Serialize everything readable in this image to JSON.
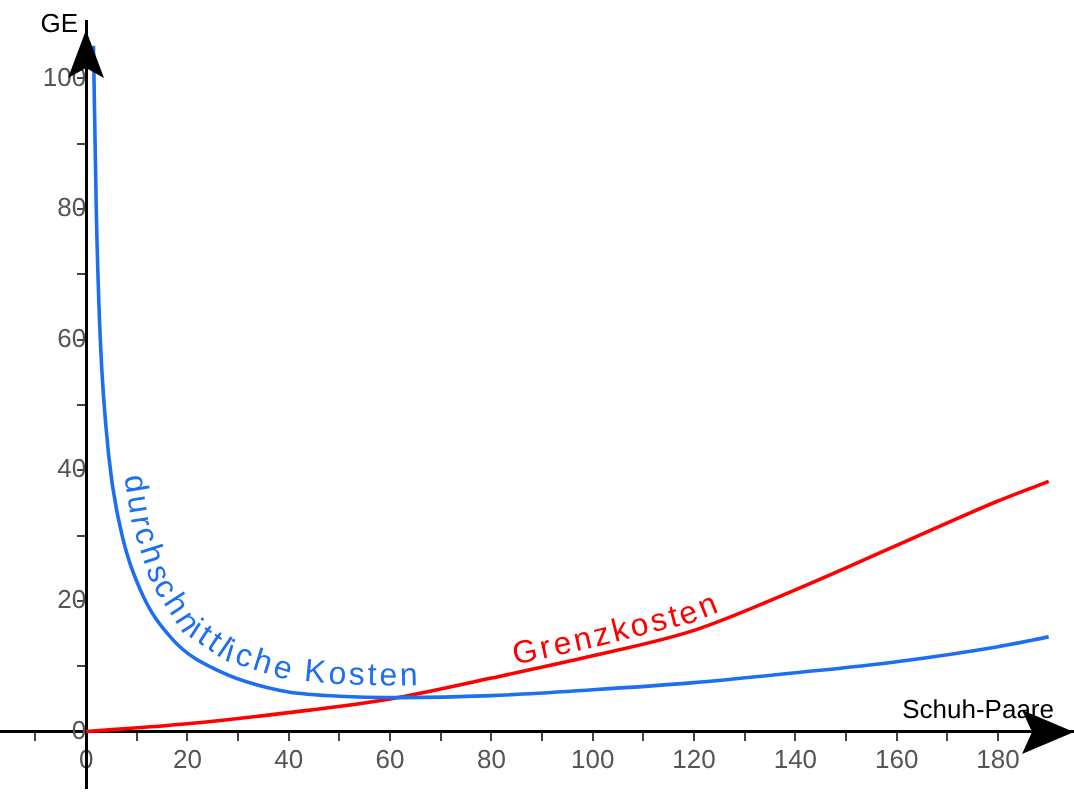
{
  "chart_data": {
    "type": "line",
    "xlabel": "Schuh-Paare",
    "ylabel": "GE",
    "xlim": [
      -17,
      195
    ],
    "ylim": [
      -8.7,
      108.7
    ],
    "xticks": [
      {
        "value": -10,
        "label": null
      },
      0,
      {
        "value": 10,
        "label": null
      },
      20,
      {
        "value": 30,
        "label": null
      },
      40,
      {
        "value": 50,
        "label": null
      },
      60,
      {
        "value": 70,
        "label": null
      },
      80,
      {
        "value": 90,
        "label": null
      },
      100,
      {
        "value": 110,
        "label": null
      },
      120,
      {
        "value": 130,
        "label": null
      },
      140,
      {
        "value": 150,
        "label": null
      },
      160,
      {
        "value": 170,
        "label": null
      },
      180,
      {
        "value": 190,
        "label": null
      }
    ],
    "yticks": [
      0,
      {
        "value": 10,
        "label": null
      },
      20,
      {
        "value": 30,
        "label": null
      },
      40,
      {
        "value": 50,
        "label": null
      },
      60,
      {
        "value": 70,
        "label": null
      },
      80,
      {
        "value": 90,
        "label": null
      },
      100
    ],
    "legend": false,
    "series": [
      {
        "name": "durchschnittliche Kosten",
        "color": "#1e6ff0",
        "x": [
          1.45,
          2,
          2.8,
          4.5,
          6.7,
          10.7,
          17.2,
          26.4,
          38.3,
          50,
          62,
          80,
          100,
          120,
          140,
          160,
          180,
          190
        ],
        "values": [
          105,
          80,
          60,
          42,
          31.4,
          21.7,
          14,
          9.2,
          6.3,
          5.4,
          5.2,
          5.5,
          6.4,
          7.5,
          9,
          10.7,
          13,
          14.5
        ]
      },
      {
        "name": "Grenzkosten",
        "color": "#ff0000",
        "x": [
          0,
          20,
          40,
          60,
          80,
          100,
          120,
          140,
          160,
          180,
          190
        ],
        "values": [
          0,
          1.2,
          2.9,
          5,
          8.2,
          11.6,
          15.5,
          21.7,
          28.5,
          35.3,
          38.3
        ]
      }
    ]
  }
}
